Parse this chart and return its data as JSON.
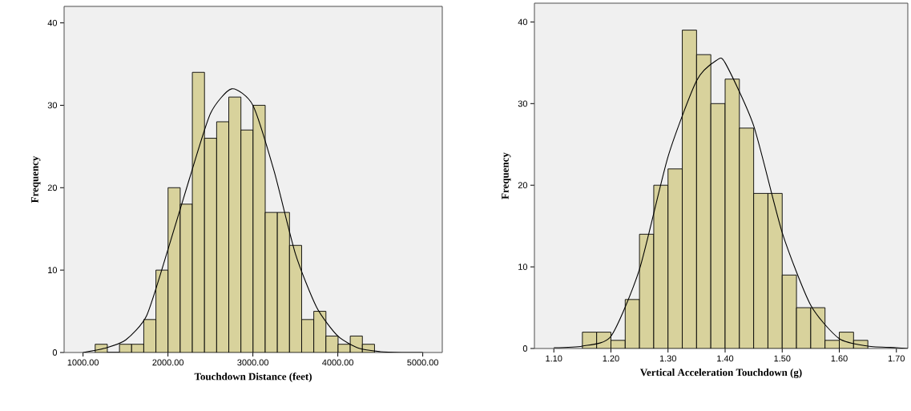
{
  "chart_data": [
    {
      "type": "histogram",
      "xlabel": "Touchdown Distance (feet)",
      "ylabel": "Frequency",
      "series": [
        {
          "color": "#d8d29c",
          "bins": [
            1143,
            1286,
            1429,
            1572,
            1715,
            1858,
            2001,
            2144,
            2287,
            2430,
            2573,
            2716,
            2859,
            3002,
            3145,
            3288,
            3431,
            3574,
            3717,
            3860,
            4003,
            4146,
            4289,
            4432
          ],
          "values": [
            1,
            0,
            1,
            1,
            4,
            10,
            20,
            18,
            34,
            26,
            28,
            31,
            27,
            30,
            17,
            17,
            13,
            4,
            5,
            2,
            1,
            2,
            1
          ]
        },
        {
          "type": "line",
          "color": "#000000",
          "x": [
            1000,
            1250,
            1500,
            1750,
            2000,
            2250,
            2500,
            2750,
            3000,
            3250,
            3500,
            3750,
            4000,
            4250,
            4500,
            4750,
            5000
          ],
          "values": [
            0,
            0.5,
            1.5,
            4.5,
            12.5,
            21,
            29,
            32,
            30,
            22,
            12,
            5.5,
            2,
            0.5,
            0.1,
            0,
            0
          ]
        }
      ],
      "xlim": [
        777,
        5230
      ],
      "ylim": [
        0,
        42
      ],
      "xticks": [
        {
          "value": 1000,
          "label": "1000.00"
        },
        {
          "value": 2000,
          "label": "2000.00"
        },
        {
          "value": 3000,
          "label": "3000.00"
        },
        {
          "value": 4000,
          "label": "4000.00"
        },
        {
          "value": 5000,
          "label": "5000.00"
        }
      ],
      "yticks": [
        0,
        10,
        20,
        30,
        40
      ],
      "grid": false
    },
    {
      "type": "histogram",
      "xlabel": "Vertical Acceleration Touchdown (g)",
      "ylabel": "Frequency",
      "series": [
        {
          "color": "#d8d29c",
          "bins": [
            1.15,
            1.175,
            1.2,
            1.225,
            1.25,
            1.275,
            1.3,
            1.325,
            1.35,
            1.375,
            1.4,
            1.425,
            1.45,
            1.475,
            1.5,
            1.525,
            1.55,
            1.575,
            1.6,
            1.625,
            1.65
          ],
          "values": [
            2,
            2,
            1,
            6,
            14,
            20,
            22,
            39,
            36,
            30,
            33,
            27,
            19,
            19,
            9,
            5,
            5,
            1,
            2,
            1
          ]
        },
        {
          "type": "line",
          "color": "#000000",
          "x": [
            1.1,
            1.15,
            1.2,
            1.25,
            1.3,
            1.35,
            1.385,
            1.4,
            1.45,
            1.5,
            1.55,
            1.6,
            1.65,
            1.7,
            1.72
          ],
          "values": [
            0.1,
            0.3,
            1.5,
            9.7,
            23.5,
            32.8,
            35.3,
            35,
            27.3,
            14.2,
            5.3,
            1.2,
            0.3,
            0.1,
            0
          ]
        }
      ],
      "xlim": [
        1.066,
        1.72
      ],
      "ylim": [
        0,
        42.3
      ],
      "xticks": [
        {
          "value": 1.1,
          "label": "1.10"
        },
        {
          "value": 1.2,
          "label": "1.20"
        },
        {
          "value": 1.3,
          "label": "1.30"
        },
        {
          "value": 1.4,
          "label": "1.40"
        },
        {
          "value": 1.5,
          "label": "1.50"
        },
        {
          "value": 1.6,
          "label": "1.60"
        },
        {
          "value": 1.7,
          "label": "1.70"
        }
      ],
      "yticks": [
        0,
        10,
        20,
        30,
        40
      ],
      "grid": false
    }
  ]
}
